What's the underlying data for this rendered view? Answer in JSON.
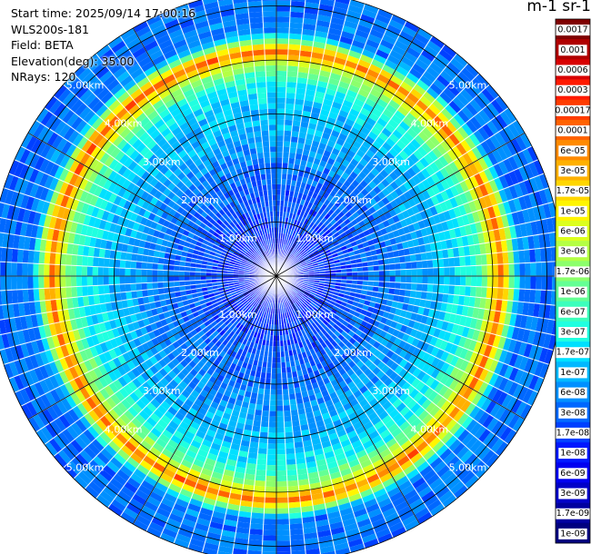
{
  "header": {
    "start_time": "Start time: 2025/09/14 17:00:16",
    "instrument": "WLS200s-181",
    "field": "Field: BETA",
    "elevation": "Elevation(deg): 35.00",
    "nrays": "NRays: 120"
  },
  "colorbar": {
    "unit_label": "m-1 sr-1",
    "labels": [
      "0.0017",
      "0.001",
      "0.0006",
      "0.0003",
      "0.00017",
      "0.0001",
      "6e-05",
      "3e-05",
      "1.7e-05",
      "1e-05",
      "6e-06",
      "3e-06",
      "1.7e-06",
      "1e-06",
      "6e-07",
      "3e-07",
      "1.7e-07",
      "1e-07",
      "6e-08",
      "3e-08",
      "1.7e-08",
      "1e-08",
      "6e-09",
      "3e-09",
      "1.7e-09",
      "1e-09"
    ],
    "colors": [
      "#800000",
      "#b00000",
      "#d80000",
      "#ff1a00",
      "#ff3c00",
      "#ff6200",
      "#ff8a00",
      "#ffb000",
      "#ffd600",
      "#fff500",
      "#dcff1e",
      "#b4ff44",
      "#8cff6c",
      "#64ff94",
      "#3cffbc",
      "#20ffe0",
      "#00e0ff",
      "#00b8ff",
      "#0090ff",
      "#0068ff",
      "#0040ff",
      "#0018ff",
      "#0000f0",
      "#0000c8",
      "#0000a0",
      "#000080"
    ]
  },
  "chart_data": {
    "type": "heatmap",
    "projection": "polar (PPI scan)",
    "field": "BETA",
    "elevation_deg": 35.0,
    "n_rays": 120,
    "range_rings_km": [
      1,
      2,
      3,
      4,
      5
    ],
    "range_labels": [
      "1.00km",
      "2.00km",
      "3.00km",
      "4.00km",
      "5.00km"
    ],
    "max_range_km": 5.3,
    "value_scale": "log",
    "value_range": [
      1e-09,
      0.0017
    ],
    "radial_profile": [
      {
        "range_km": 0.0,
        "value": 6e-09
      },
      {
        "range_km": 1.0,
        "value": 2e-08
      },
      {
        "range_km": 2.0,
        "value": 4e-08
      },
      {
        "range_km": 2.6,
        "value": 8e-08
      },
      {
        "range_km": 3.1,
        "value": 1.2e-07
      },
      {
        "range_km": 3.6,
        "value": 3e-07
      },
      {
        "range_km": 3.9,
        "value": 2e-06
      },
      {
        "range_km": 4.15,
        "value": 6e-05
      },
      {
        "range_km": 4.3,
        "value": 5e-06
      },
      {
        "range_km": 4.5,
        "value": 5e-08
      },
      {
        "range_km": 5.3,
        "value": 4e-08
      }
    ],
    "colorbar_title": "m-1 sr-1"
  }
}
